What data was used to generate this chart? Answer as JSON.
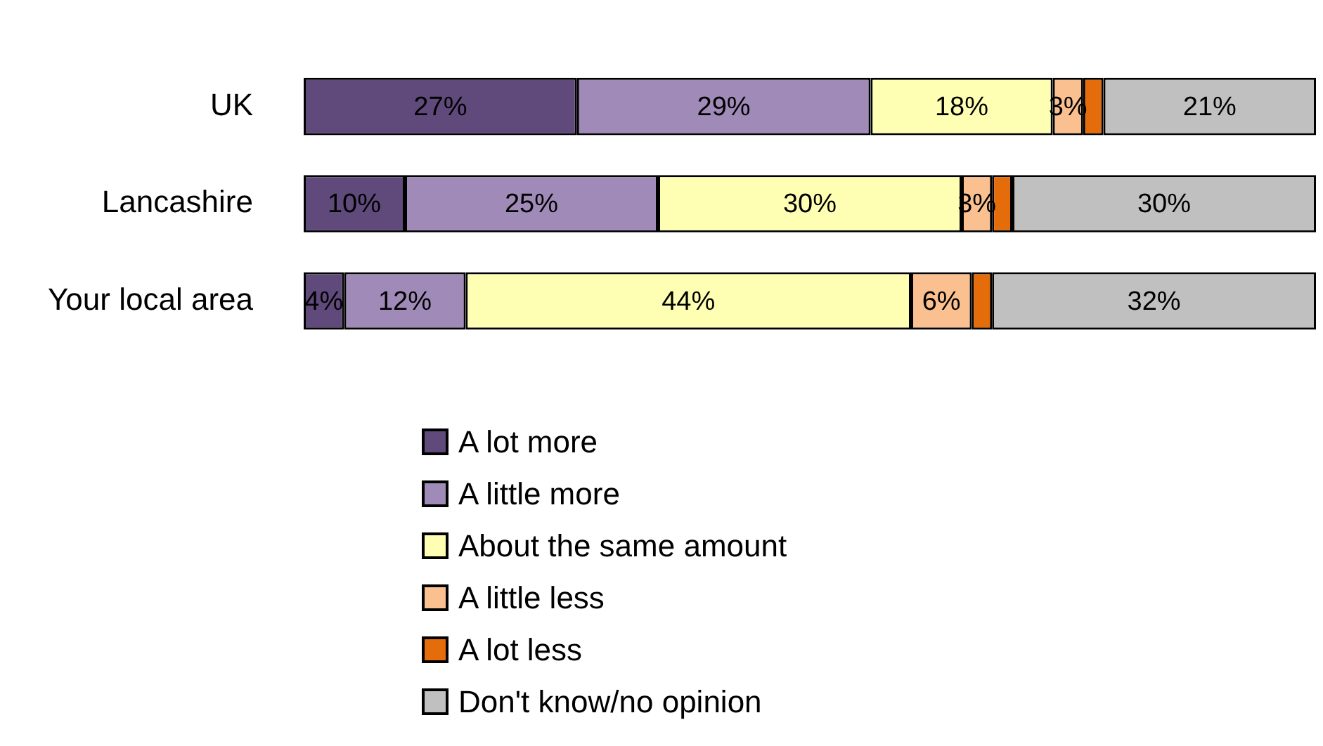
{
  "chart_data": {
    "type": "bar",
    "orientation": "horizontal",
    "stacked": true,
    "legend": "bottom",
    "categories": [
      "UK",
      "Lancashire",
      "Your local area"
    ],
    "series": [
      {
        "name": "A lot more",
        "color": "#604a7b",
        "values": [
          27,
          10,
          4
        ],
        "value_labels": [
          "27%",
          "10%",
          "4%"
        ]
      },
      {
        "name": "A little more",
        "color": "#a08ab8",
        "values": [
          29,
          25,
          12
        ],
        "value_labels": [
          "29%",
          "25%",
          "12%"
        ]
      },
      {
        "name": "About the same amount",
        "color": "#ffffb3",
        "values": [
          18,
          30,
          44
        ],
        "value_labels": [
          "18%",
          "30%",
          "44%"
        ]
      },
      {
        "name": "A little less",
        "color": "#fac090",
        "values": [
          3,
          3,
          6
        ],
        "value_labels": [
          "3%",
          "3%",
          "6%"
        ]
      },
      {
        "name": "A lot less",
        "color": "#e46c0a",
        "values": [
          2,
          2,
          2
        ]
      },
      {
        "name": "Don't know/no opinion",
        "color": "#c0c0c0",
        "values": [
          21,
          30,
          32
        ],
        "value_labels": [
          "21%",
          "30%",
          "32%"
        ]
      }
    ]
  }
}
